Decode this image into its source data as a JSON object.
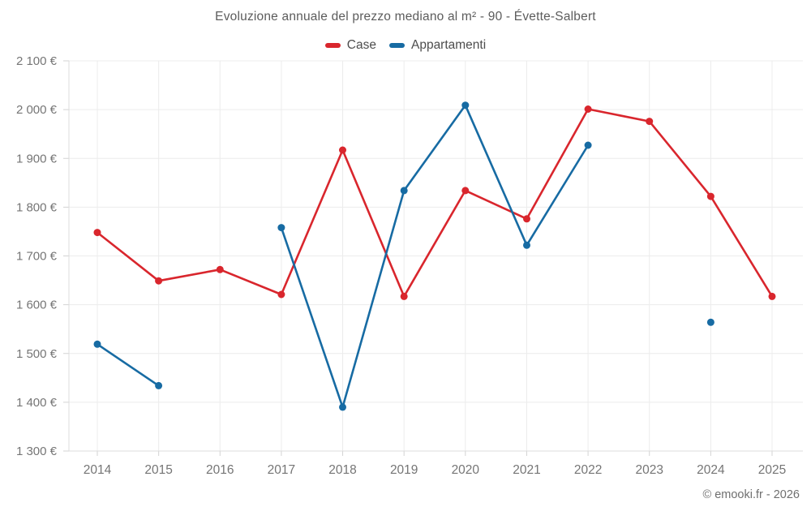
{
  "title": "Evoluzione annuale del prezzo mediano al m² - 90 - Évette-Salbert",
  "footer": "© emooki.fr - 2026",
  "legend": [
    {
      "label": "Case",
      "color": "#d9262d"
    },
    {
      "label": "Appartamenti",
      "color": "#176ba3"
    }
  ],
  "chart_data": {
    "type": "line",
    "title": "Evoluzione annuale del prezzo mediano al m² - 90 - Évette-Salbert",
    "x": [
      "2014",
      "2015",
      "2016",
      "2017",
      "2018",
      "2019",
      "2020",
      "2021",
      "2022",
      "2023",
      "2024",
      "2025"
    ],
    "series": [
      {
        "name": "Case",
        "color": "#d9262d",
        "values": [
          1748,
          1649,
          1672,
          1621,
          1917,
          1617,
          1834,
          1776,
          2001,
          1976,
          1822,
          1617
        ]
      },
      {
        "name": "Appartamenti",
        "color": "#176ba3",
        "values": [
          1519,
          1434,
          null,
          1758,
          1390,
          1834,
          2009,
          1722,
          1927,
          null,
          1564,
          null
        ]
      }
    ],
    "ylabel": "",
    "xlabel": "",
    "ylim": [
      1300,
      2100
    ],
    "ytick_step": 100,
    "ytick_labels": [
      "1 300 €",
      "1 400 €",
      "1 500 €",
      "1 600 €",
      "1 700 €",
      "1 800 €",
      "1 900 €",
      "2 000 €",
      "2 100 €"
    ],
    "grid": true,
    "legend_position": "top",
    "currency": "€"
  },
  "theme": {
    "grid_color": "#ececec",
    "axis_color": "#dcdcdc",
    "tick_color": "#d3d3d3",
    "tick_label_color": "#757575"
  }
}
